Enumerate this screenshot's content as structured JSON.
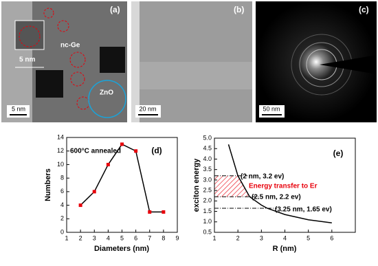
{
  "images": [
    {
      "label": "(a)",
      "texts": [
        "nc-Ge",
        "5 nm",
        "ZnO"
      ],
      "scale_bar": "5 nm"
    },
    {
      "label": "(b)",
      "scale_bar": "20 nm"
    },
    {
      "label": "(c)",
      "scale_bar": "50 nm"
    }
  ],
  "chart_data": [
    {
      "type": "line",
      "title": "(d)",
      "annotations": [
        "600°C annealed"
      ],
      "x_label": "Diameters (nm)",
      "y_label": "Numbers",
      "x": [
        2,
        3,
        4,
        5,
        6,
        7,
        8
      ],
      "series": [
        {
          "color": "#000000",
          "marker_color": "#e8000b",
          "values": [
            4,
            6,
            10,
            13,
            12,
            3,
            3
          ]
        }
      ],
      "xlim": [
        1,
        9
      ],
      "xticks": [
        1,
        2,
        3,
        4,
        5,
        6,
        7,
        8,
        9
      ],
      "ylim": [
        0,
        14
      ],
      "yticks": [
        0,
        2,
        4,
        6,
        8,
        10,
        12,
        14
      ]
    },
    {
      "type": "line",
      "title": "(e)",
      "annotations": [
        "(2 nm, 3.2 ev)",
        "Energy transfer to Er",
        "(2.5 nm, 2.2 ev)",
        "(3.25 nm, 1.65 ev)"
      ],
      "x_label": "R (nm)",
      "y_label": "exciton energy",
      "x": [
        1.6,
        2,
        2.5,
        3,
        3.25,
        4,
        5,
        6
      ],
      "series": [
        {
          "color": "#000000",
          "values": [
            4.7,
            3.2,
            2.2,
            1.8,
            1.65,
            1.35,
            1.1,
            0.95
          ]
        }
      ],
      "reference_points": [
        {
          "x": 2,
          "y": 3.2
        },
        {
          "x": 2.5,
          "y": 2.2
        },
        {
          "x": 3.25,
          "y": 1.65
        }
      ],
      "hatch_color": "#e8000b",
      "xlim": [
        1,
        7
      ],
      "xticks": [
        1,
        2,
        3,
        4,
        5,
        6
      ],
      "ylim": [
        0.5,
        5.0
      ],
      "yticks": [
        0.5,
        {
          "value": 1,
          "label": "1.0"
        },
        1.5,
        {
          "value": 2,
          "label": "2.0"
        },
        2.5,
        {
          "value": 3,
          "label": "3.0"
        },
        3.5,
        {
          "value": 4,
          "label": "4.0"
        },
        4.5,
        {
          "value": 5,
          "label": "5.0"
        }
      ]
    }
  ]
}
